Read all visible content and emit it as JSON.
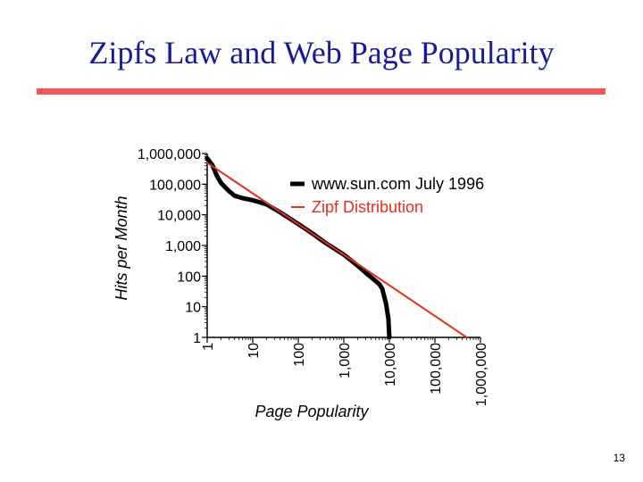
{
  "slide": {
    "title": "Zipfs Law and Web Page Popularity",
    "page_number": "13"
  },
  "colors": {
    "title": "#1a1a99",
    "rule": "#f0585a",
    "data_series": "#000000",
    "zipf_series": "#e03020"
  },
  "chart_data": {
    "type": "line",
    "xscale": "log",
    "yscale": "log",
    "xlim": [
      1,
      1000000
    ],
    "ylim": [
      1,
      1000000
    ],
    "xlabel": "Page Popularity",
    "ylabel": "Hits per Month",
    "x_ticks": [
      {
        "value": 1,
        "label": "1"
      },
      {
        "value": 10,
        "label": "10"
      },
      {
        "value": 100,
        "label": "100"
      },
      {
        "value": 1000,
        "label": "1,000"
      },
      {
        "value": 10000,
        "label": "10,000"
      },
      {
        "value": 100000,
        "label": "100,000"
      },
      {
        "value": 1000000,
        "label": "1,000,000"
      }
    ],
    "y_ticks": [
      {
        "value": 1,
        "label": "1"
      },
      {
        "value": 10,
        "label": "10"
      },
      {
        "value": 100,
        "label": "100"
      },
      {
        "value": 1000,
        "label": "1,000"
      },
      {
        "value": 10000,
        "label": "10,000"
      },
      {
        "value": 100000,
        "label": "100,000"
      },
      {
        "value": 1000000,
        "label": "1,000,000"
      }
    ],
    "legend_position": "top-right",
    "series": [
      {
        "name": "www.sun.com July 1996",
        "color": "#000000",
        "points": [
          [
            1,
            700000
          ],
          [
            1.3,
            420000
          ],
          [
            1.6,
            200000
          ],
          [
            2,
            110000
          ],
          [
            3,
            60000
          ],
          [
            4,
            42000
          ],
          [
            6,
            35000
          ],
          [
            10,
            30000
          ],
          [
            20,
            22000
          ],
          [
            40,
            12000
          ],
          [
            100,
            5000
          ],
          [
            200,
            2500
          ],
          [
            400,
            1200
          ],
          [
            1000,
            500
          ],
          [
            2000,
            220
          ],
          [
            3000,
            130
          ],
          [
            6000,
            55
          ],
          [
            7000,
            38
          ],
          [
            8500,
            12
          ],
          [
            9500,
            4
          ],
          [
            10000,
            1
          ]
        ]
      },
      {
        "name": "Zipf Distribution",
        "color": "#e03020",
        "points": [
          [
            1,
            500000
          ],
          [
            500000,
            1
          ]
        ]
      }
    ]
  }
}
